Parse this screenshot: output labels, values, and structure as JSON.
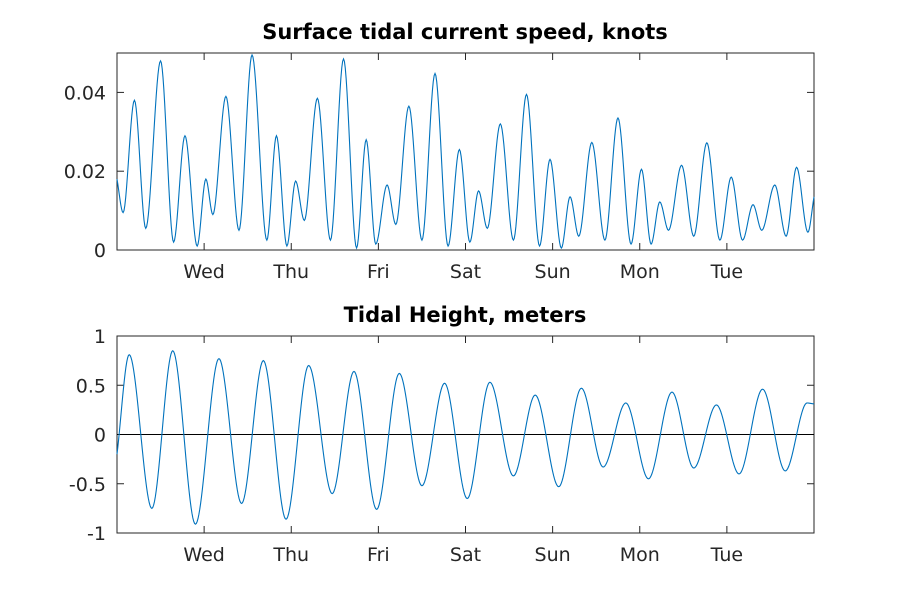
{
  "chart_data": [
    {
      "type": "line",
      "title": "Surface tidal current speed, knots",
      "xlabel": "",
      "ylabel": "",
      "x_unit": "days",
      "xlim": [
        0,
        8
      ],
      "ylim": [
        0,
        0.05
      ],
      "xticks": [
        1,
        2,
        3,
        4,
        5,
        6,
        7
      ],
      "xticklabels": [
        "Wed",
        "Thu",
        "Fri",
        "Sat",
        "Sun",
        "Mon",
        "Tue"
      ],
      "yticks": [
        0,
        0.02,
        0.04
      ],
      "yticklabels": [
        "0",
        "0.02",
        "0.04"
      ],
      "grid": false,
      "color": "#0072bd",
      "series": [
        {
          "points": [
            [
              0.0,
              0.018
            ],
            [
              0.07,
              0.0095
            ],
            [
              0.2,
              0.038
            ],
            [
              0.33,
              0.0055
            ],
            [
              0.5,
              0.048
            ],
            [
              0.65,
              0.002
            ],
            [
              0.78,
              0.029
            ],
            [
              0.92,
              0.001
            ],
            [
              1.02,
              0.018
            ],
            [
              1.1,
              0.009
            ],
            [
              1.25,
              0.039
            ],
            [
              1.4,
              0.005
            ],
            [
              1.55,
              0.0495
            ],
            [
              1.72,
              0.0025
            ],
            [
              1.83,
              0.029
            ],
            [
              1.95,
              0.001
            ],
            [
              2.05,
              0.0175
            ],
            [
              2.15,
              0.0075
            ],
            [
              2.3,
              0.0385
            ],
            [
              2.45,
              0.0025
            ],
            [
              2.6,
              0.0485
            ],
            [
              2.75,
              0.0005
            ],
            [
              2.86,
              0.028
            ],
            [
              2.97,
              0.0015
            ],
            [
              3.1,
              0.0165
            ],
            [
              3.2,
              0.0065
            ],
            [
              3.35,
              0.0365
            ],
            [
              3.5,
              0.0025
            ],
            [
              3.65,
              0.0448
            ],
            [
              3.8,
              0.001
            ],
            [
              3.93,
              0.0255
            ],
            [
              4.05,
              0.002
            ],
            [
              4.15,
              0.015
            ],
            [
              4.25,
              0.0055
            ],
            [
              4.4,
              0.032
            ],
            [
              4.55,
              0.0025
            ],
            [
              4.7,
              0.0395
            ],
            [
              4.85,
              0.001
            ],
            [
              4.97,
              0.023
            ],
            [
              5.1,
              0.0005
            ],
            [
              5.2,
              0.0135
            ],
            [
              5.3,
              0.0035
            ],
            [
              5.45,
              0.0273
            ],
            [
              5.6,
              0.0025
            ],
            [
              5.75,
              0.0335
            ],
            [
              5.9,
              0.0015
            ],
            [
              6.02,
              0.0205
            ],
            [
              6.13,
              0.0015
            ],
            [
              6.23,
              0.0122
            ],
            [
              6.33,
              0.005
            ],
            [
              6.48,
              0.0215
            ],
            [
              6.62,
              0.0035
            ],
            [
              6.77,
              0.0272
            ],
            [
              6.92,
              0.0025
            ],
            [
              7.05,
              0.0185
            ],
            [
              7.18,
              0.0025
            ],
            [
              7.3,
              0.0115
            ],
            [
              7.4,
              0.005
            ],
            [
              7.55,
              0.0165
            ],
            [
              7.68,
              0.0035
            ],
            [
              7.8,
              0.021
            ],
            [
              7.93,
              0.0045
            ],
            [
              8.0,
              0.0135
            ]
          ]
        }
      ]
    },
    {
      "type": "line",
      "title": "Tidal Height, meters",
      "xlabel": "",
      "ylabel": "",
      "x_unit": "days",
      "xlim": [
        0,
        8
      ],
      "ylim": [
        -1,
        1
      ],
      "xticks": [
        1,
        2,
        3,
        4,
        5,
        6,
        7
      ],
      "xticklabels": [
        "Wed",
        "Thu",
        "Fri",
        "Sat",
        "Sun",
        "Mon",
        "Tue"
      ],
      "yticks": [
        -1,
        -0.5,
        0,
        0.5,
        1
      ],
      "yticklabels": [
        "-1",
        "-0.5",
        "0",
        "0.5",
        "1"
      ],
      "grid": false,
      "zero_line": true,
      "color": "#0072bd",
      "series": [
        {
          "points": [
            [
              0.0,
              -0.2
            ],
            [
              0.14,
              0.81
            ],
            [
              0.4,
              -0.75
            ],
            [
              0.64,
              0.85
            ],
            [
              0.9,
              -0.91
            ],
            [
              1.17,
              0.77
            ],
            [
              1.43,
              -0.7
            ],
            [
              1.68,
              0.75
            ],
            [
              1.94,
              -0.86
            ],
            [
              2.2,
              0.7
            ],
            [
              2.47,
              -0.6
            ],
            [
              2.72,
              0.64
            ],
            [
              2.98,
              -0.76
            ],
            [
              3.24,
              0.62
            ],
            [
              3.5,
              -0.52
            ],
            [
              3.76,
              0.52
            ],
            [
              4.02,
              -0.65
            ],
            [
              4.28,
              0.53
            ],
            [
              4.55,
              -0.42
            ],
            [
              4.8,
              0.4
            ],
            [
              5.07,
              -0.53
            ],
            [
              5.33,
              0.47
            ],
            [
              5.58,
              -0.33
            ],
            [
              5.84,
              0.32
            ],
            [
              6.1,
              -0.45
            ],
            [
              6.37,
              0.43
            ],
            [
              6.62,
              -0.34
            ],
            [
              6.88,
              0.3
            ],
            [
              7.14,
              -0.4
            ],
            [
              7.41,
              0.46
            ],
            [
              7.67,
              -0.37
            ],
            [
              7.92,
              0.32
            ],
            [
              8.0,
              0.31
            ]
          ]
        }
      ]
    }
  ]
}
